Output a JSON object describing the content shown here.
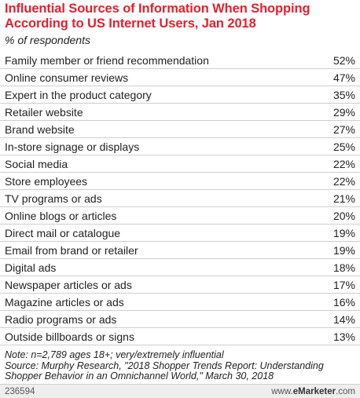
{
  "header": {
    "title": "Influential Sources of Information When Shopping According to US Internet Users, Jan 2018",
    "subtitle": "% of respondents"
  },
  "chart_data": {
    "type": "table",
    "title": "Influential Sources of Information When Shopping According to US Internet Users, Jan 2018",
    "subtitle": "% of respondents",
    "categories": [
      "Family member or friend recommendation",
      "Online consumer reviews",
      "Expert in the product category",
      "Retailer website",
      "Brand website",
      "In-store signage or displays",
      "Social media",
      "Store employees",
      "TV programs or ads",
      "Online blogs or articles",
      "Direct mail or catalogue",
      "Email from brand or retailer",
      "Digital ads",
      "Newspaper articles or ads",
      "Magazine articles or ads",
      "Radio programs or ads",
      "Outside billboards or signs"
    ],
    "values": [
      52,
      47,
      35,
      29,
      27,
      25,
      22,
      22,
      21,
      20,
      19,
      19,
      18,
      17,
      16,
      14,
      13
    ],
    "value_labels": [
      "52%",
      "47%",
      "35%",
      "29%",
      "27%",
      "25%",
      "22%",
      "22%",
      "21%",
      "20%",
      "19%",
      "19%",
      "18%",
      "17%",
      "16%",
      "14%",
      "13%"
    ],
    "unit": "%"
  },
  "footnote": {
    "note": "Note: n=2,789 ages 18+; very/extremely influential",
    "source": "Source: Murphy Research, \"2018 Shopper Trends Report: Understanding Shopper Behavior in an Omnichannel World,\" March 30, 2018"
  },
  "footer": {
    "code": "236594",
    "brand_prefix": "www.",
    "brand_name": "eMarketer",
    "brand_suffix": ".com"
  },
  "colors": {
    "title": "#e4202e",
    "row_divider": "#cfcfcf",
    "footer_bg": "#eeeeee"
  }
}
